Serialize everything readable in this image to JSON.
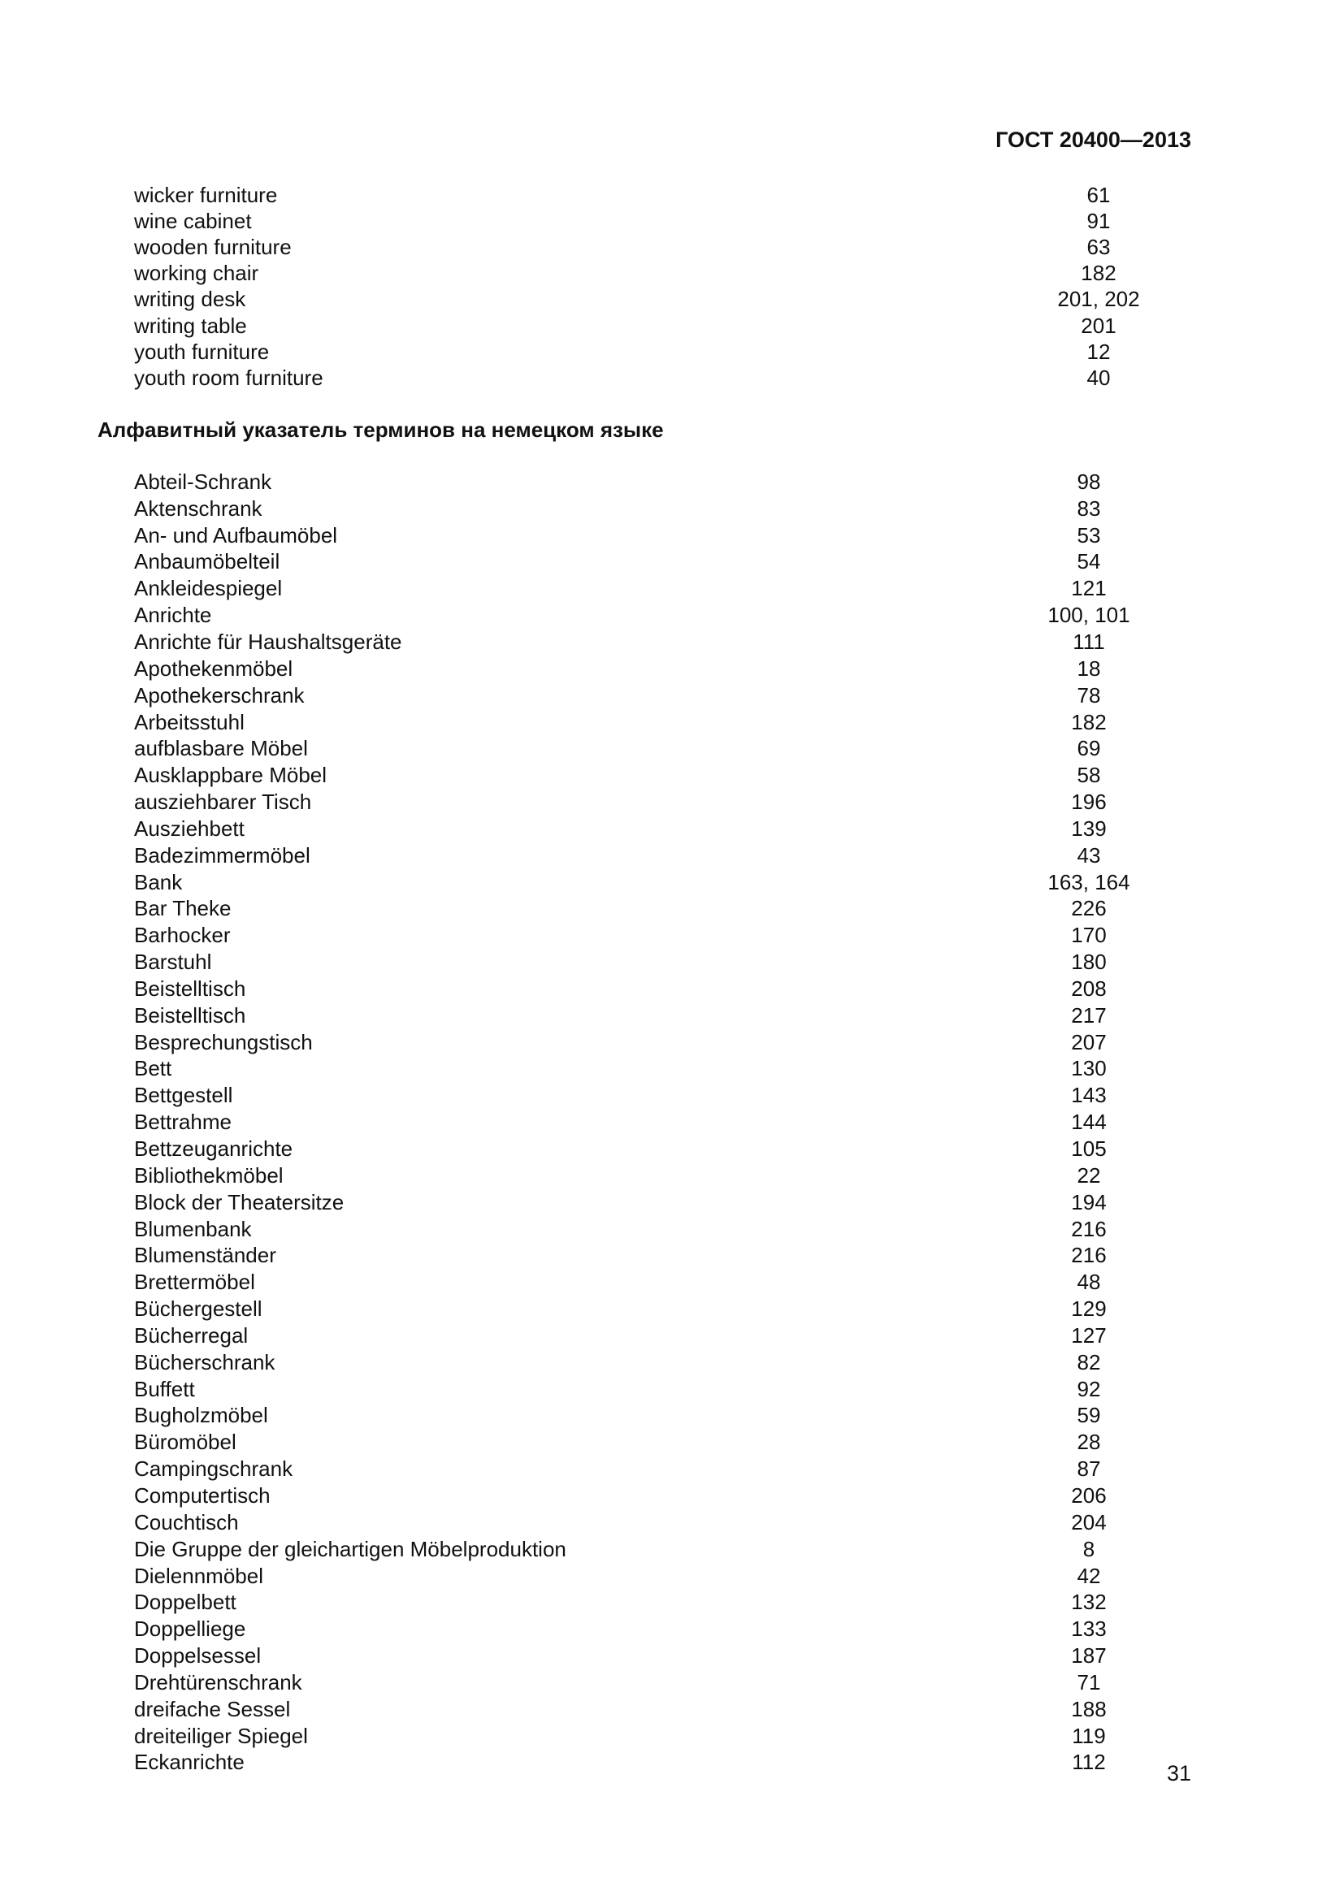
{
  "header": {
    "standard": "ГОСТ 20400—2013"
  },
  "english_index": [
    [
      "wicker furniture",
      "61"
    ],
    [
      "wine cabinet",
      "91"
    ],
    [
      "wooden furniture",
      "63"
    ],
    [
      "working chair",
      "182"
    ],
    [
      "writing desk",
      "201, 202"
    ],
    [
      "writing table",
      "201"
    ],
    [
      "youth furniture",
      "12"
    ],
    [
      "youth room furniture",
      "40"
    ]
  ],
  "german_section_title": "Алфавитный указатель терминов на немецком языке",
  "german_index": [
    [
      "Abteil-Schrank",
      "98"
    ],
    [
      "Aktenschrank",
      "83"
    ],
    [
      "An- und Aufbaumöbel",
      "53"
    ],
    [
      "Anbaumöbelteil",
      "54"
    ],
    [
      "Ankleidespiegel",
      "121"
    ],
    [
      "Anrichte",
      "100, 101"
    ],
    [
      "Anrichte für Haushaltsgeräte",
      "111"
    ],
    [
      "Apothekenmöbel",
      "18"
    ],
    [
      "Apothekerschrank",
      "78"
    ],
    [
      "Arbeitsstuhl",
      "182"
    ],
    [
      "aufblasbare Möbel",
      "69"
    ],
    [
      "Ausklappbare Möbel",
      "58"
    ],
    [
      "ausziehbarer Tisch",
      "196"
    ],
    [
      "Ausziehbett",
      "139"
    ],
    [
      "Badezimmermöbel",
      "43"
    ],
    [
      "Bank",
      "163, 164"
    ],
    [
      "Bar Theke",
      "226"
    ],
    [
      "Barhocker",
      "170"
    ],
    [
      "Barstuhl",
      "180"
    ],
    [
      "Beistelltisch",
      "208"
    ],
    [
      "Beistelltisch",
      "217"
    ],
    [
      "Besprechungstisch",
      "207"
    ],
    [
      "Bett",
      "130"
    ],
    [
      "Bettgestell",
      "143"
    ],
    [
      "Bettrahme",
      "144"
    ],
    [
      "Bettzeuganrichte",
      "105"
    ],
    [
      "Bibliothekmöbel",
      "22"
    ],
    [
      "Block der Theatersitze",
      "194"
    ],
    [
      "Blumenbank",
      "216"
    ],
    [
      "Blumenständer",
      "216"
    ],
    [
      "Brettermöbel",
      "48"
    ],
    [
      "Büchergestell",
      "129"
    ],
    [
      "Bücherregal",
      "127"
    ],
    [
      "Bücherschrank",
      "82"
    ],
    [
      "Buffett",
      "92"
    ],
    [
      "Bugholzmöbel",
      "59"
    ],
    [
      "Büromöbel",
      "28"
    ],
    [
      "Campingschrank",
      "87"
    ],
    [
      "Computertisch",
      "206"
    ],
    [
      "Couchtisch",
      "204"
    ],
    [
      "Die Gruppe der gleichartigen Möbelproduktion",
      "8"
    ],
    [
      "Dielennmöbel",
      "42"
    ],
    [
      "Doppelbett",
      "132"
    ],
    [
      "Doppelliege",
      "133"
    ],
    [
      "Doppelsessel",
      "187"
    ],
    [
      "Drehtürenschrank",
      "71"
    ],
    [
      "dreifache Sessel",
      "188"
    ],
    [
      "dreiteiliger Spiegel",
      "119"
    ],
    [
      "Eckanrichte",
      "112"
    ]
  ],
  "page_number": "31"
}
